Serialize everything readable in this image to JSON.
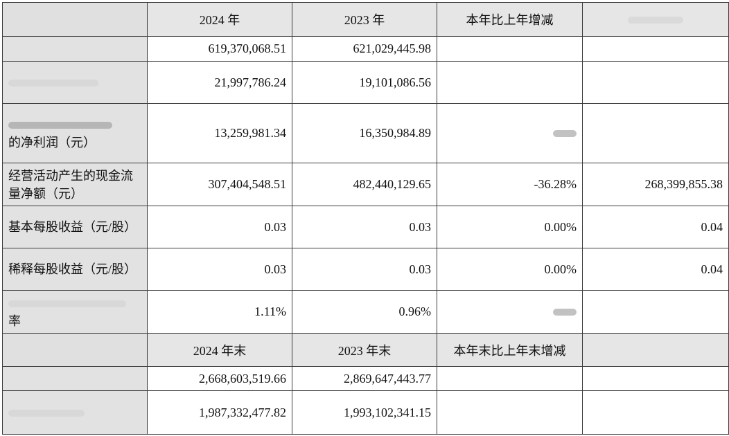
{
  "header1": {
    "col_2024": "2024 年",
    "col_2023": "2023 年",
    "col_change": "本年比上年增减"
  },
  "rows1": [
    {
      "label": "",
      "v2024": "619,370,068.51",
      "v2023": "621,029,445.98",
      "change": "",
      "v2022": ""
    },
    {
      "label": "",
      "v2024": "21,997,786.24",
      "v2023": "19,101,086.56",
      "change": "",
      "v2022": ""
    },
    {
      "label": "的净利润（元）",
      "v2024": "13,259,981.34",
      "v2023": "16,350,984.89",
      "change": "",
      "v2022": ""
    },
    {
      "label": "经营活动产生的现金流量净额（元）",
      "v2024": "307,404,548.51",
      "v2023": "482,440,129.65",
      "change": "-36.28%",
      "v2022": "268,399,855.38"
    },
    {
      "label": "基本每股收益（元/股）",
      "v2024": "0.03",
      "v2023": "0.03",
      "change": "0.00%",
      "v2022": "0.04"
    },
    {
      "label": "稀释每股收益（元/股）",
      "v2024": "0.03",
      "v2023": "0.03",
      "change": "0.00%",
      "v2022": "0.04"
    },
    {
      "label": "率",
      "v2024": "1.11%",
      "v2023": "0.96%",
      "change": "",
      "v2022": ""
    }
  ],
  "header2": {
    "col_2024": "2024 年末",
    "col_2023": "2023 年末",
    "col_change": "本年末比上年末增减"
  },
  "rows2": [
    {
      "label": "",
      "v2024": "2,668,603,519.66",
      "v2023": "2,869,647,443.77",
      "change": "",
      "v2022": ""
    },
    {
      "label": "",
      "v2024": "1,987,332,477.82",
      "v2023": "1,993,102,341.15",
      "change": "",
      "v2022": ""
    }
  ]
}
